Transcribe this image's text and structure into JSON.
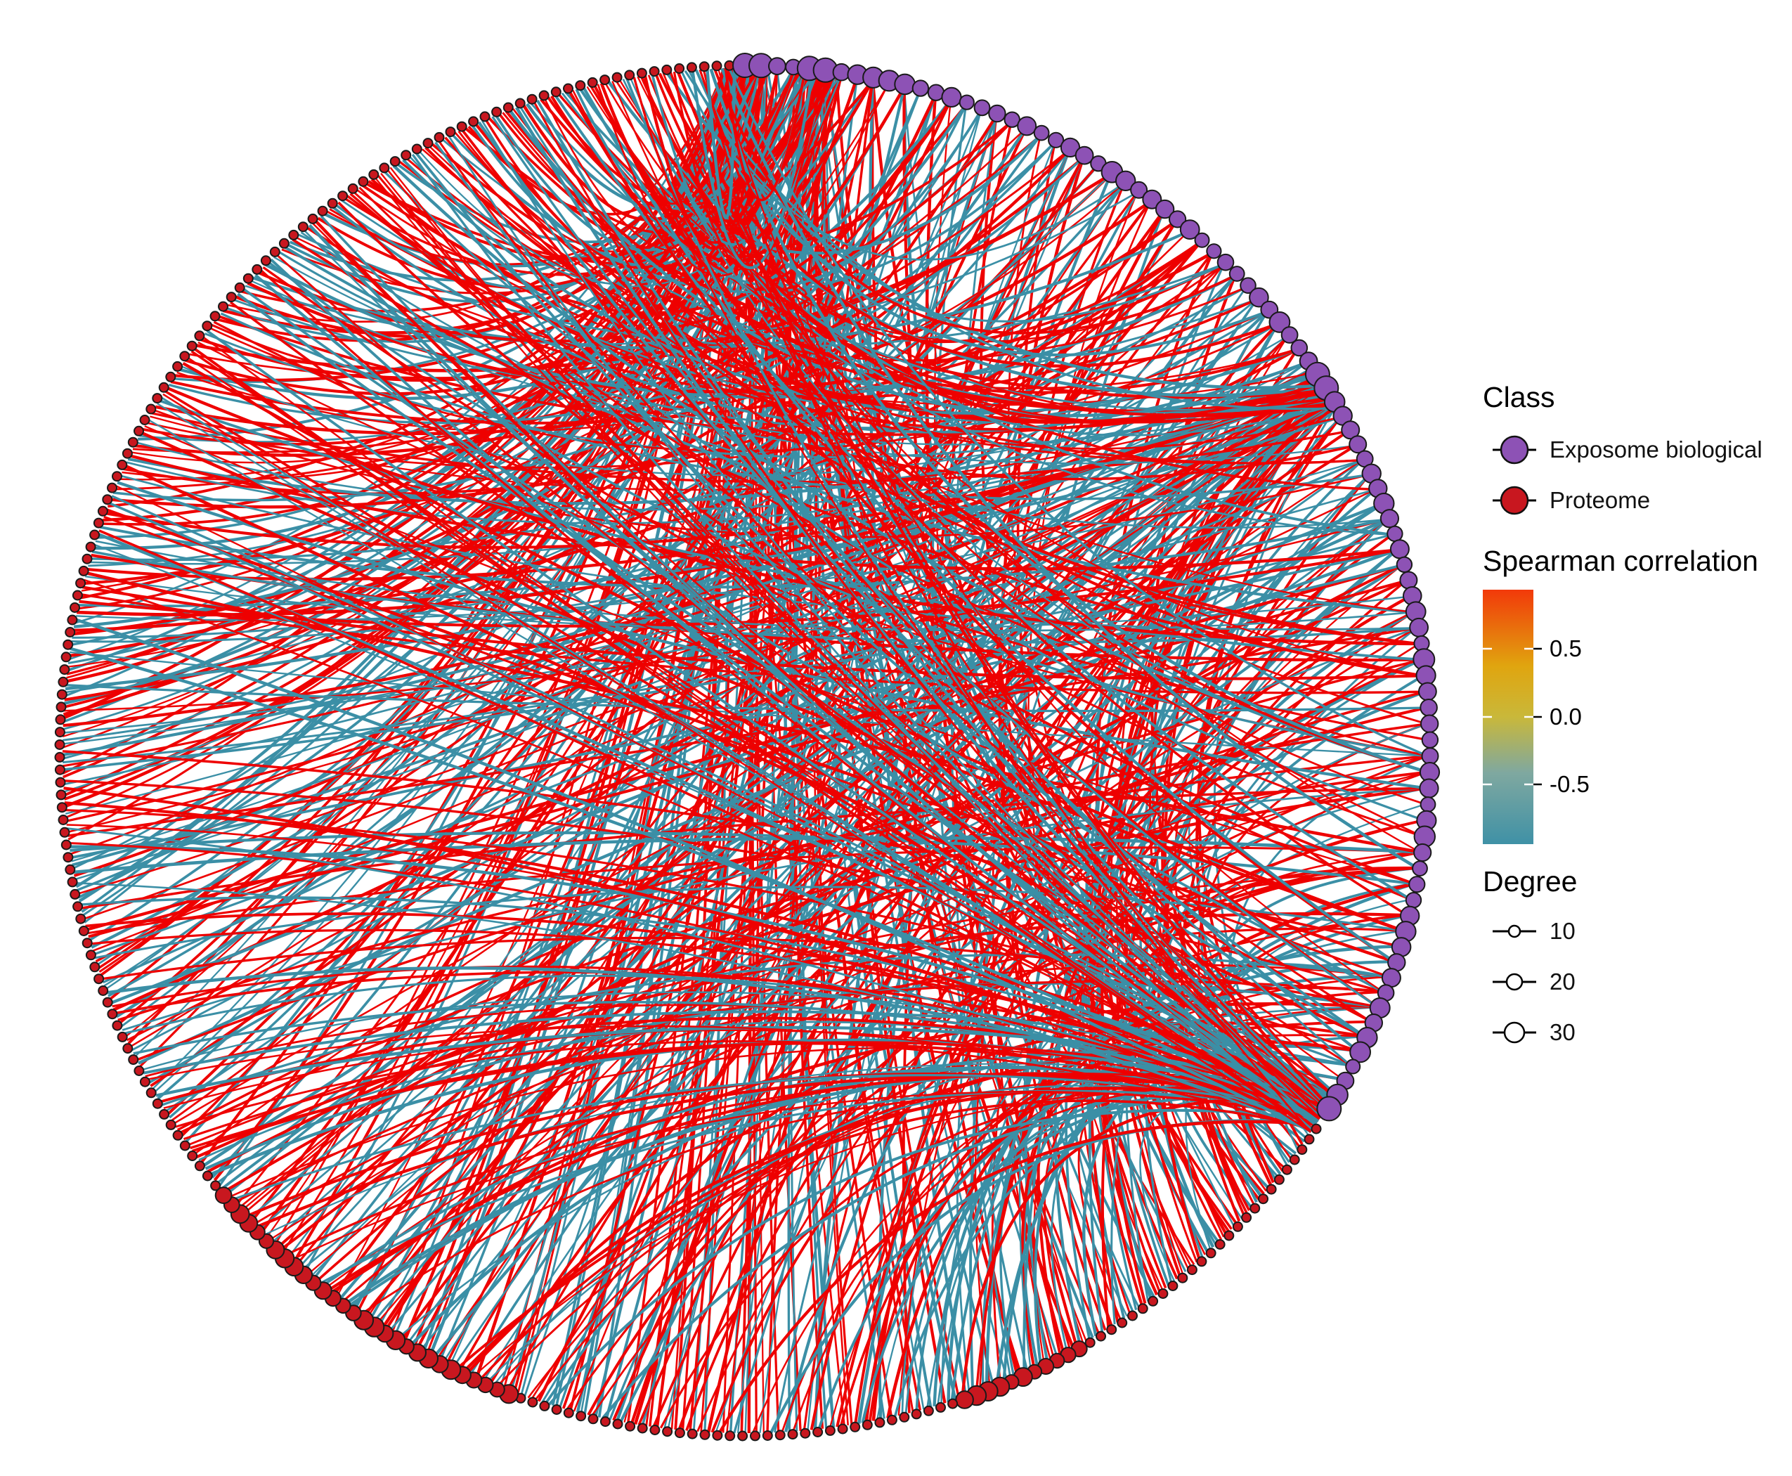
{
  "legend": {
    "class": {
      "title": "Class",
      "items": [
        {
          "label": "Exposome biological",
          "color": "#8d52b5"
        },
        {
          "label": "Proteome",
          "color": "#c8171f"
        }
      ]
    },
    "correlation": {
      "title": "Spearman correlation",
      "ticks": [
        "0.5",
        "0.0",
        "-0.5"
      ],
      "range": [
        -1,
        1
      ],
      "colors": [
        "#3f91a6",
        "#c7b83a",
        "#e3a10a",
        "#f23b0a"
      ]
    },
    "degree": {
      "title": "Degree",
      "items": [
        "10",
        "20",
        "30"
      ]
    }
  },
  "network": {
    "layout": "circular",
    "positive_edge_color": "#ee0000",
    "negative_edge_color": "#3b8fa6",
    "node_outline_color": "#1a1a1a"
  }
}
